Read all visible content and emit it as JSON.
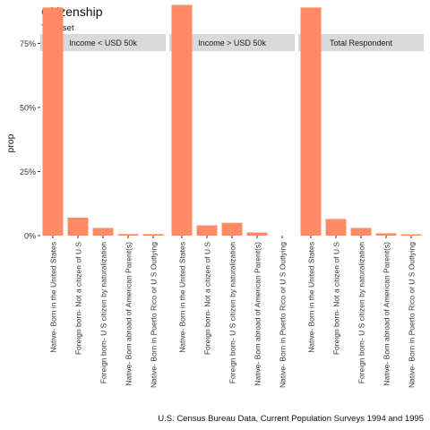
{
  "chart_data": {
    "type": "bar",
    "title": "Citizenship",
    "subtitle": "Train set",
    "caption": "U.S. Census Bureau Data, Current Population Surveys 1994 and 1995",
    "xlabel": "",
    "ylabel": "prop",
    "ylim": [
      0,
      0.72
    ],
    "yticks": [
      0,
      0.25,
      0.5,
      0.75
    ],
    "ytick_labels": [
      "0%",
      "25%",
      "50%",
      "75%"
    ],
    "grid": false,
    "bar_color": "#FF8A65",
    "strip_color": "#D9D9D9",
    "categories": [
      "Native- Born in the United States",
      "Foreign born- Not a citizen of U S",
      "Foreign born- U S citizen by naturalization",
      "Native- Born abroad of American Parent(s)",
      "Native- Born in Puerto Rico or U S Outlying"
    ],
    "facets": [
      {
        "name": "Income < USD 50k",
        "values": [
          0.89,
          0.07,
          0.03,
          0.006,
          0.006
        ]
      },
      {
        "name": "Income > USD 50k",
        "values": [
          0.9,
          0.04,
          0.05,
          0.012,
          0.0
        ]
      },
      {
        "name": "Total Respondent",
        "values": [
          0.89,
          0.065,
          0.03,
          0.009,
          0.005
        ]
      }
    ]
  }
}
